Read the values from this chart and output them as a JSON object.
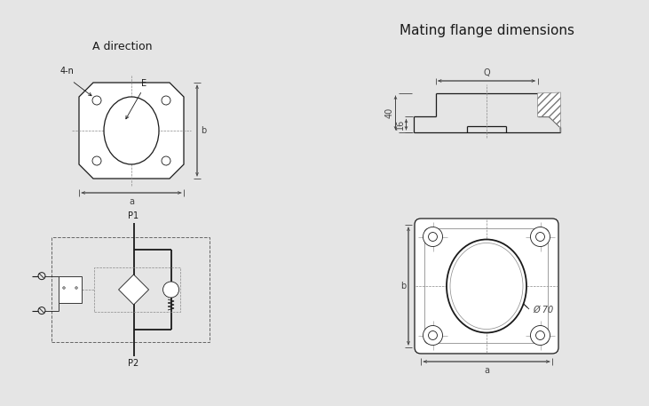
{
  "title_left": "A direction",
  "title_right": "Mating flange dimensions",
  "bg_color": "#e5e5e5",
  "line_color": "#1a1a1a",
  "dim_color": "#444444",
  "label_4n": "4-n",
  "label_E": "E",
  "label_a_top": "a",
  "label_b_top": "b",
  "label_P1": "P1",
  "label_P2": "P2",
  "label_Q": "Q",
  "label_40": "40",
  "label_16": "16",
  "label_a_bot": "a",
  "label_b_bot": "b",
  "label_phi70": "Ø 70",
  "font_size_title": 9,
  "font_size_label": 7,
  "font_size_big_title": 11
}
